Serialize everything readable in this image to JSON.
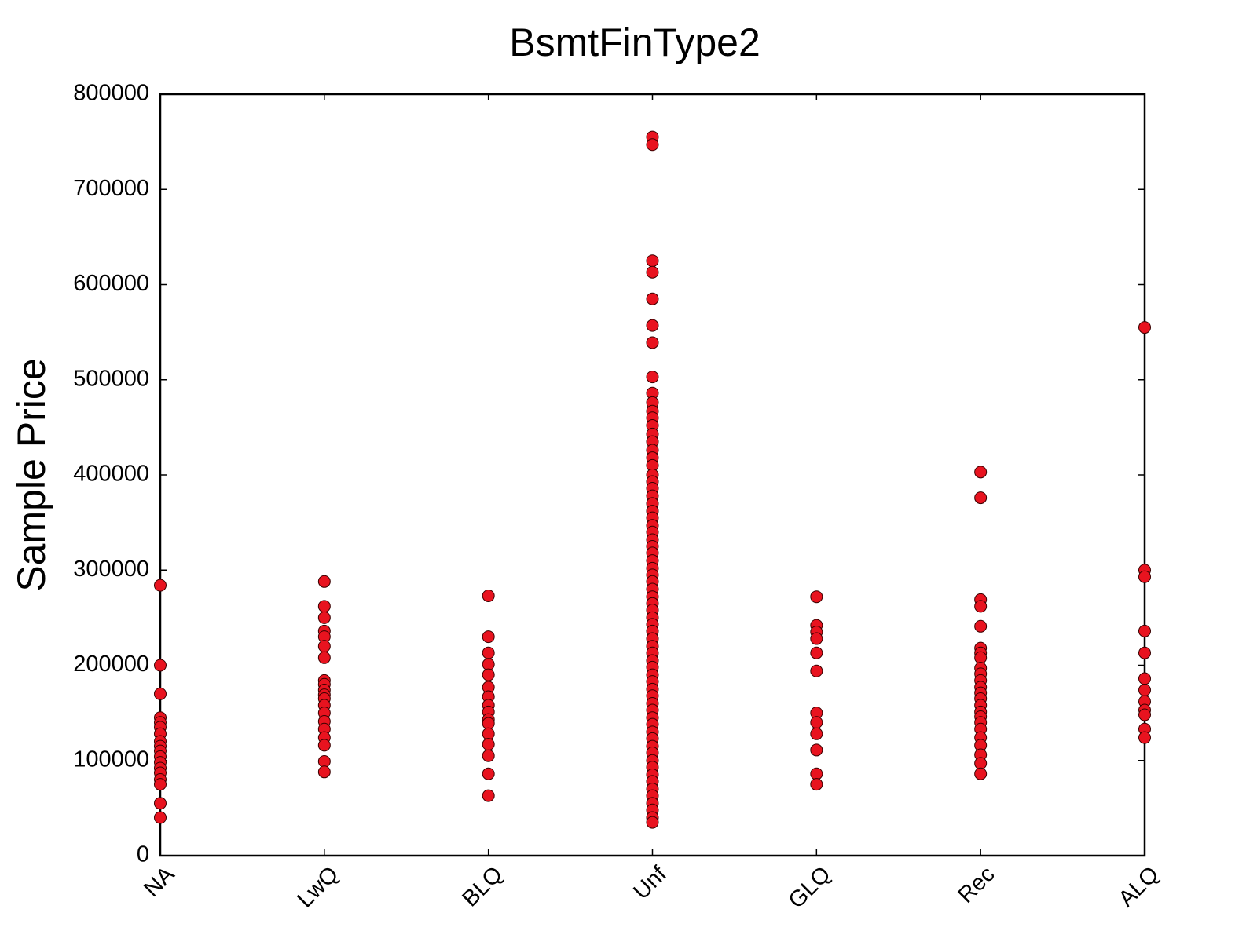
{
  "chart_data": {
    "type": "strip",
    "title": "BsmtFinType2",
    "y_label": "Sample Price",
    "categories": [
      "NA",
      "LwQ",
      "BLQ",
      "Unf",
      "GLQ",
      "Rec",
      "ALQ"
    ],
    "values": [
      [
        284000,
        200000,
        170000,
        145000,
        140000,
        135000,
        128000,
        120000,
        115000,
        110000,
        104000,
        98000,
        92000,
        87000,
        80000,
        75000,
        55000,
        40000
      ],
      [
        288000,
        262000,
        250000,
        236000,
        230000,
        220000,
        208000,
        184000,
        180000,
        174000,
        169000,
        165000,
        158000,
        150000,
        141000,
        133000,
        124000,
        116000,
        99000,
        88000
      ],
      [
        273000,
        230000,
        213000,
        201000,
        190000,
        177000,
        167000,
        158000,
        151000,
        143000,
        139000,
        128000,
        117000,
        105000,
        86000,
        63000
      ],
      [
        755000,
        747000,
        625000,
        613000,
        585000,
        557000,
        539000,
        503000,
        486000,
        476000,
        467000,
        460000,
        452000,
        443000,
        435000,
        426000,
        418000,
        410000,
        400000,
        393000,
        386000,
        378000,
        370000,
        362000,
        355000,
        347000,
        340000,
        332000,
        325000,
        318000,
        310000,
        302000,
        295000,
        288000,
        280000,
        272000,
        265000,
        258000,
        250000,
        243000,
        236000,
        228000,
        220000,
        213000,
        205000,
        198000,
        190000,
        183000,
        175000,
        168000,
        160000,
        153000,
        145000,
        138000,
        130000,
        123000,
        115000,
        108000,
        100000,
        93000,
        85000,
        78000,
        70000,
        63000,
        55000,
        48000,
        40000,
        35000
      ],
      [
        272000,
        242000,
        235000,
        228000,
        213000,
        194000,
        150000,
        140000,
        128000,
        111000,
        86000,
        75000
      ],
      [
        403000,
        376000,
        269000,
        262000,
        241000,
        218000,
        213000,
        208000,
        197000,
        191000,
        184000,
        177000,
        171000,
        165000,
        158000,
        151000,
        146000,
        140000,
        133000,
        124000,
        116000,
        106000,
        97000,
        86000
      ],
      [
        555000,
        300000,
        293000,
        236000,
        213000,
        186000,
        174000,
        162000,
        153000,
        148000,
        133000,
        124000
      ]
    ],
    "color": "#e8131f",
    "edge_color": "#3a0000",
    "ylim": [
      0,
      800000
    ],
    "yticks": [
      0,
      100000,
      200000,
      300000,
      400000,
      500000,
      600000,
      700000,
      800000
    ]
  }
}
